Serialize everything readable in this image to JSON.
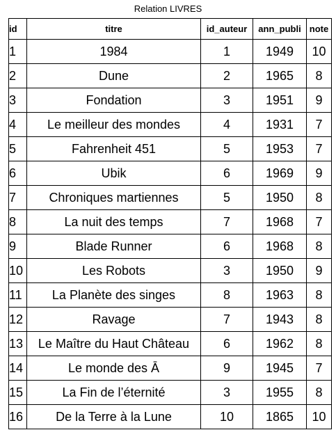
{
  "caption": "Relation LIVRES",
  "columns": {
    "id": "id",
    "titre": "titre",
    "id_auteur": "id_auteur",
    "ann_publi": "ann_publi",
    "note": "note"
  },
  "rows": [
    {
      "id": "1",
      "titre": "1984",
      "id_auteur": "1",
      "ann_publi": "1949",
      "note": "10"
    },
    {
      "id": "2",
      "titre": "Dune",
      "id_auteur": "2",
      "ann_publi": "1965",
      "note": "8"
    },
    {
      "id": "3",
      "titre": "Fondation",
      "id_auteur": "3",
      "ann_publi": "1951",
      "note": "9"
    },
    {
      "id": "4",
      "titre": "Le meilleur des mondes",
      "id_auteur": "4",
      "ann_publi": "1931",
      "note": "7"
    },
    {
      "id": "5",
      "titre": "Fahrenheit 451",
      "id_auteur": "5",
      "ann_publi": "1953",
      "note": "7"
    },
    {
      "id": "6",
      "titre": "Ubik",
      "id_auteur": "6",
      "ann_publi": "1969",
      "note": "9"
    },
    {
      "id": "7",
      "titre": "Chroniques martiennes",
      "id_auteur": "5",
      "ann_publi": "1950",
      "note": "8"
    },
    {
      "id": "8",
      "titre": "La nuit des temps",
      "id_auteur": "7",
      "ann_publi": "1968",
      "note": "7"
    },
    {
      "id": "9",
      "titre": "Blade Runner",
      "id_auteur": "6",
      "ann_publi": "1968",
      "note": "8"
    },
    {
      "id": "10",
      "titre": "Les Robots",
      "id_auteur": "3",
      "ann_publi": "1950",
      "note": "9"
    },
    {
      "id": "11",
      "titre": "La Planète des singes",
      "id_auteur": "8",
      "ann_publi": "1963",
      "note": "8"
    },
    {
      "id": "12",
      "titre": "Ravage",
      "id_auteur": "7",
      "ann_publi": "1943",
      "note": "8"
    },
    {
      "id": "13",
      "titre": "Le Maître du Haut Château",
      "id_auteur": "6",
      "ann_publi": "1962",
      "note": "8"
    },
    {
      "id": "14",
      "titre": "Le monde des Ā",
      "id_auteur": "9",
      "ann_publi": "1945",
      "note": "7"
    },
    {
      "id": "15",
      "titre": "La Fin de l’éternité",
      "id_auteur": "3",
      "ann_publi": "1955",
      "note": "8"
    },
    {
      "id": "16",
      "titre": "De la Terre à la Lune",
      "id_auteur": "10",
      "ann_publi": "1865",
      "note": "10"
    }
  ]
}
